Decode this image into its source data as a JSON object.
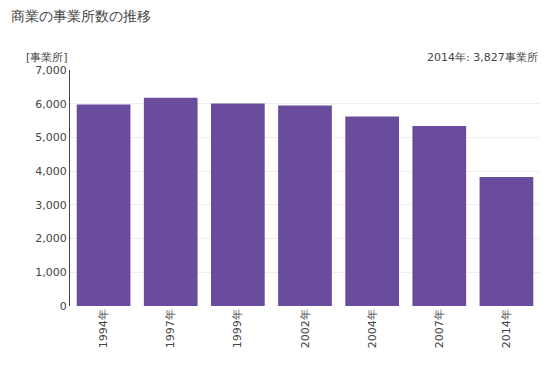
{
  "chart_data": {
    "type": "bar",
    "title": "商業の事業所数の推移",
    "ylabel": "[事業所]",
    "annotation": "2014年: 3,827事業所",
    "categories": [
      "1994年",
      "1997年",
      "1999年",
      "2002年",
      "2004年",
      "2007年",
      "2014年"
    ],
    "values": [
      5980,
      6180,
      6010,
      5950,
      5620,
      5340,
      3827
    ],
    "color": "#6a4c9c",
    "ylim": [
      0,
      7000
    ],
    "yticks": [
      0,
      {
        "value": 1000,
        "label": "1,000"
      },
      {
        "value": 2000,
        "label": "2,000"
      },
      {
        "value": 3000,
        "label": "3,000"
      },
      {
        "value": 4000,
        "label": "4,000"
      },
      {
        "value": 5000,
        "label": "5,000"
      },
      {
        "value": 6000,
        "label": "6,000"
      },
      {
        "value": 7000,
        "label": "7,000"
      }
    ],
    "grid": true
  }
}
